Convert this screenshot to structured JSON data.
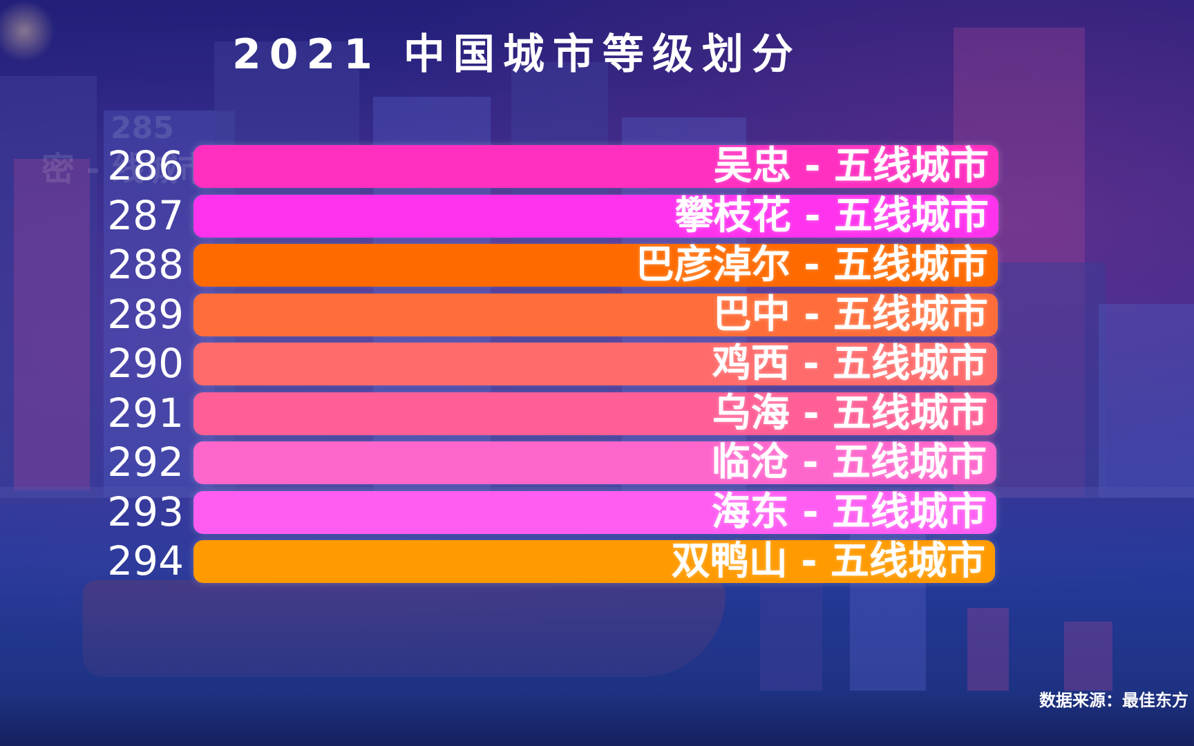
{
  "title": "2021 中国城市等级划分",
  "source": "数据来源：最佳东方",
  "ghost_row": {
    "rank": "285",
    "label": "密 - 线城市"
  },
  "chart_data": {
    "type": "bar",
    "orientation": "horizontal",
    "title": "2021 中国城市等级划分",
    "categories": [
      "286",
      "287",
      "288",
      "289",
      "290",
      "291",
      "292",
      "293",
      "294"
    ],
    "labels": [
      "吴忠 - 五线城市",
      "攀枝花 - 五线城市",
      "巴彦淖尔 - 五线城市",
      "巴中 - 五线城市",
      "鸡西 - 五线城市",
      "乌海 - 五线城市",
      "临沧 - 五线城市",
      "海东 - 五线城市",
      "双鸭山 - 五线城市"
    ],
    "values": [
      1.0,
      1.0,
      0.999,
      0.999,
      0.998,
      0.998,
      0.997,
      0.997,
      0.996
    ],
    "colors": [
      "#ff2fc0",
      "#ff33ee",
      "#ff6a00",
      "#ff6e3a",
      "#ff6b6b",
      "#ff5f96",
      "#ff66cc",
      "#ff5df2",
      "#ff9a00"
    ]
  }
}
